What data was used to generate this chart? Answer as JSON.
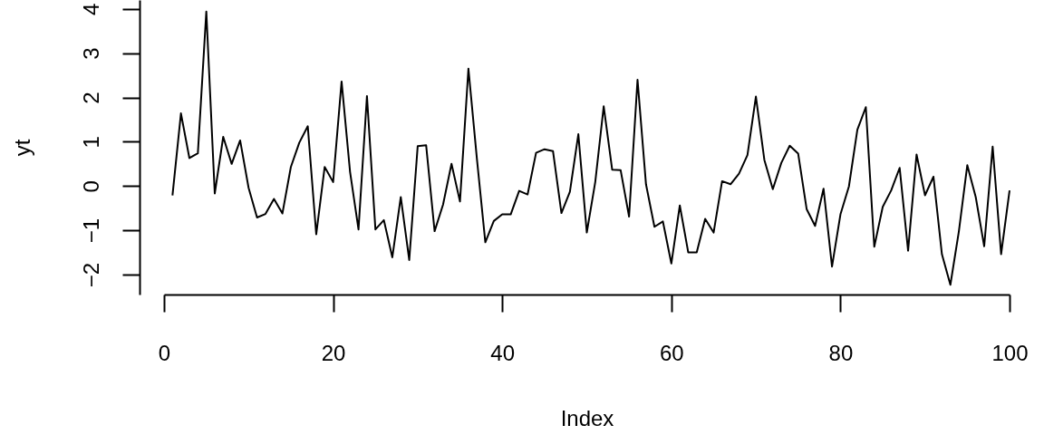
{
  "chart_data": {
    "type": "line",
    "xlabel": "Index",
    "ylabel": "yt",
    "x": [
      1,
      2,
      3,
      4,
      5,
      6,
      7,
      8,
      9,
      10,
      11,
      12,
      13,
      14,
      15,
      16,
      17,
      18,
      19,
      20,
      21,
      22,
      23,
      24,
      25,
      26,
      27,
      28,
      29,
      30,
      31,
      32,
      33,
      34,
      35,
      36,
      37,
      38,
      39,
      40,
      41,
      42,
      43,
      44,
      45,
      46,
      47,
      48,
      49,
      50,
      51,
      52,
      53,
      54,
      55,
      56,
      57,
      58,
      59,
      60,
      61,
      62,
      63,
      64,
      65,
      66,
      67,
      68,
      69,
      70,
      71,
      72,
      73,
      74,
      75,
      76,
      77,
      78,
      79,
      80,
      81,
      82,
      83,
      84,
      85,
      86,
      87,
      88,
      89,
      90,
      91,
      92,
      93,
      94,
      95,
      96,
      97,
      98,
      99,
      100
    ],
    "values": [
      -0.21,
      1.64,
      0.63,
      0.74,
      3.94,
      -0.17,
      1.11,
      0.5,
      1.03,
      -0.04,
      -0.71,
      -0.63,
      -0.29,
      -0.62,
      0.43,
      0.98,
      1.35,
      -1.09,
      0.43,
      0.09,
      2.36,
      0.32,
      -0.98,
      2.03,
      -0.98,
      -0.77,
      -1.61,
      -0.25,
      -1.67,
      0.9,
      0.92,
      -1.02,
      -0.42,
      0.5,
      -0.35,
      2.65,
      0.62,
      -1.27,
      -0.79,
      -0.64,
      -0.64,
      -0.11,
      -0.19,
      0.75,
      0.83,
      0.79,
      -0.61,
      -0.13,
      1.17,
      -1.05,
      0.09,
      1.8,
      0.37,
      0.36,
      -0.69,
      2.4,
      0.04,
      -0.92,
      -0.8,
      -1.75,
      -0.44,
      -1.5,
      -1.5,
      -0.74,
      -1.05,
      0.11,
      0.04,
      0.28,
      0.7,
      2.02,
      0.59,
      -0.07,
      0.52,
      0.91,
      0.73,
      -0.52,
      -0.9,
      -0.06,
      -1.82,
      -0.64,
      -0.01,
      1.27,
      1.78,
      -1.37,
      -0.47,
      -0.1,
      0.41,
      -1.46,
      0.71,
      -0.21,
      0.21,
      -1.54,
      -2.23,
      -1.03,
      0.47,
      -0.25,
      -1.36,
      0.89,
      -1.54,
      -0.1
    ],
    "color": "#000000",
    "line_style": "solid",
    "xlim": [
      0,
      100
    ],
    "xticks": [
      0,
      20,
      40,
      60,
      80,
      100
    ],
    "ylim": [
      -2.45,
      4.2
    ],
    "yticks": [
      -2,
      -1,
      0,
      1,
      2,
      3,
      4
    ]
  }
}
